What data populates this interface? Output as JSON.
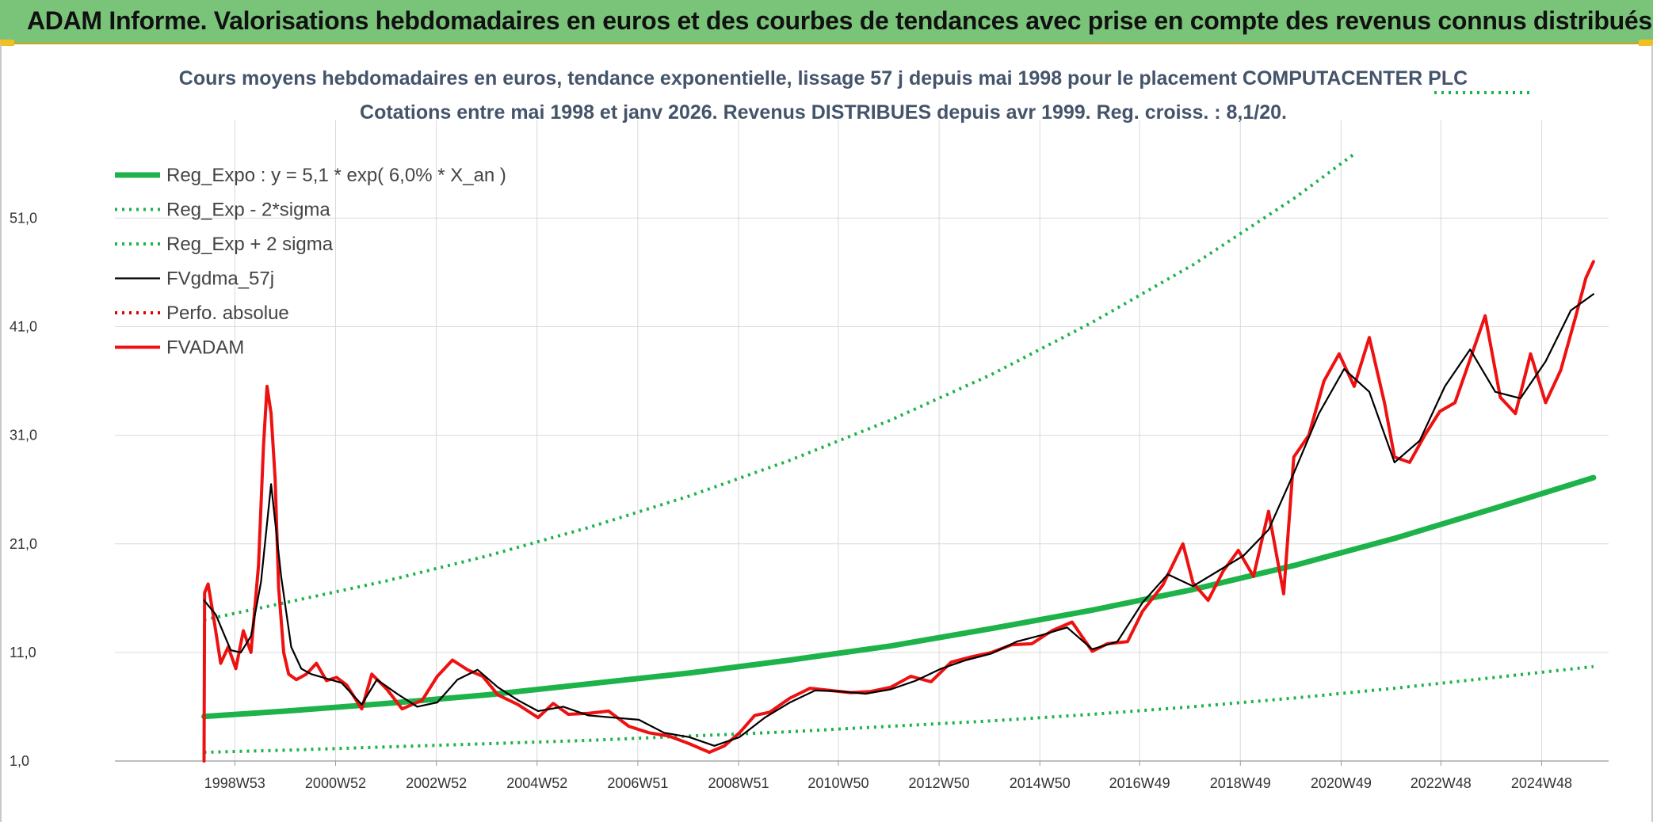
{
  "header": {
    "title": "ADAM Informe. Valorisations hebdomadaires en euros et des courbes de tendances avec prise en compte des revenus connus distribués"
  },
  "colors": {
    "banner": "#7ac47a",
    "reg_expo": "#1db34a",
    "sigma": "#1db34a",
    "fvgdma": "#000000",
    "perfo": "#e00000",
    "fvadam": "#ee1111"
  },
  "chart_data": {
    "type": "line",
    "title": "Cours moyens hebdomadaires en euros, tendance exponentielle, lissage 57 j depuis mai 1998 pour le placement COMPUTACENTER PLC",
    "subtitle": "Cotations entre mai 1998 et janv 2026. Revenus DISTRIBUES depuis avr 1999. Reg. croiss. : 8,1/20.",
    "x_tick_labels": [
      "1998W53",
      "2000W52",
      "2002W52",
      "2004W52",
      "2006W51",
      "2008W51",
      "2010W50",
      "2012W50",
      "2014W50",
      "2016W49",
      "2018W49",
      "2020W49",
      "2022W48",
      "2024W48"
    ],
    "x_tick_years": [
      1998.98,
      2000.98,
      2002.98,
      2004.98,
      2006.98,
      2008.98,
      2010.96,
      2012.96,
      2014.96,
      2016.94,
      2018.94,
      2020.94,
      2022.92,
      2024.92
    ],
    "y_tick_labels": [
      "1,0",
      "11,0",
      "21,0",
      "31,0",
      "41,0",
      "51,0"
    ],
    "y_ticks": [
      1,
      11,
      21,
      31,
      41,
      51
    ],
    "xlim": [
      1996.6,
      2026.25
    ],
    "ylim": [
      1,
      60
    ],
    "grid": true,
    "legend_position": "top-left",
    "series": [
      {
        "name": "Reg_Expo : y = 5,1 * exp( 6,0% *  X_an )",
        "style": "solid-thick",
        "color": "#1db34a",
        "x": [
          1998.37,
          2000,
          2002,
          2004,
          2006,
          2008,
          2010,
          2012,
          2014,
          2016,
          2018,
          2020,
          2022,
          2024,
          2025.95
        ],
        "y": [
          5.1,
          5.6,
          6.3,
          7.1,
          8.1,
          9.1,
          10.3,
          11.6,
          13.2,
          14.9,
          16.8,
          19.0,
          21.5,
          24.3,
          27.1
        ]
      },
      {
        "name": "Reg_Exp - 2*sigma",
        "style": "dotted",
        "color": "#1db34a",
        "x": [
          1998.37,
          2000,
          2002,
          2004,
          2006,
          2008,
          2010,
          2012,
          2014,
          2016,
          2018,
          2020,
          2022,
          2024,
          2025.95
        ],
        "y": [
          1.8,
          2.0,
          2.3,
          2.6,
          2.9,
          3.3,
          3.7,
          4.2,
          4.7,
          5.3,
          6.0,
          6.8,
          7.7,
          8.7,
          9.7
        ]
      },
      {
        "name": "Reg_Exp + 2 sigma",
        "style": "dotted",
        "color": "#1db34a",
        "x": [
          1998.37,
          2000,
          2002,
          2004,
          2006,
          2008,
          2010,
          2012,
          2014,
          2016,
          2018,
          2020,
          2021.2
        ],
        "y": [
          14.0,
          15.6,
          17.6,
          19.9,
          22.5,
          25.4,
          28.7,
          32.4,
          36.6,
          41.4,
          46.7,
          52.8,
          56.9
        ]
      },
      {
        "name": "FVgdma_57j",
        "style": "solid",
        "color": "#000000",
        "x": [
          1998.37,
          1998.6,
          1998.9,
          1999.1,
          1999.3,
          1999.5,
          1999.7,
          1999.9,
          2000.1,
          2000.3,
          2000.5,
          2000.8,
          2001.1,
          2001.5,
          2001.8,
          2002.2,
          2002.6,
          2003.0,
          2003.4,
          2003.8,
          2004.2,
          2004.6,
          2005.0,
          2005.5,
          2006.0,
          2006.5,
          2007.0,
          2007.5,
          2008.0,
          2008.5,
          2009.0,
          2009.5,
          2010.0,
          2010.5,
          2011.0,
          2011.5,
          2012.0,
          2012.5,
          2013.0,
          2013.5,
          2014.0,
          2014.5,
          2015.0,
          2015.5,
          2016.0,
          2016.5,
          2017.0,
          2017.5,
          2018.0,
          2018.5,
          2019.0,
          2019.5,
          2020.0,
          2020.5,
          2021.0,
          2021.5,
          2022.0,
          2022.5,
          2023.0,
          2023.5,
          2024.0,
          2024.5,
          2025.0,
          2025.5,
          2025.95
        ],
        "y": [
          15.8,
          14.5,
          11.2,
          11.0,
          12.5,
          17.5,
          26.5,
          18.0,
          11.5,
          9.5,
          9.0,
          8.6,
          8.2,
          6.2,
          8.5,
          7.2,
          6.0,
          6.4,
          8.5,
          9.4,
          7.8,
          6.6,
          5.6,
          6.0,
          5.2,
          5.0,
          4.8,
          3.6,
          3.2,
          2.4,
          3.2,
          5.0,
          6.4,
          7.5,
          7.4,
          7.2,
          7.6,
          8.4,
          9.5,
          10.3,
          10.9,
          12.0,
          12.6,
          13.3,
          11.3,
          12.0,
          15.6,
          18.2,
          17.1,
          18.5,
          19.9,
          22.3,
          27.5,
          33.0,
          37.1,
          35.0,
          28.5,
          30.5,
          35.5,
          38.9,
          35.0,
          34.4,
          37.8,
          42.5,
          44.0
        ]
      },
      {
        "name": "Perfo. absolue",
        "style": "dotted",
        "color": "#e00000",
        "x": [],
        "y": []
      },
      {
        "name": "FVADAM",
        "style": "solid-thick",
        "color": "#ee1111",
        "x": [
          1998.37,
          1998.38,
          1998.45,
          1998.55,
          1998.7,
          1998.85,
          1999.0,
          1999.15,
          1999.3,
          1999.45,
          1999.55,
          1999.62,
          1999.7,
          1999.78,
          1999.85,
          1999.95,
          2000.05,
          2000.2,
          2000.4,
          2000.6,
          2000.8,
          2001.0,
          2001.2,
          2001.5,
          2001.7,
          2002.0,
          2002.3,
          2002.7,
          2003.0,
          2003.3,
          2003.6,
          2003.9,
          2004.2,
          2004.6,
          2005.0,
          2005.3,
          2005.6,
          2006.0,
          2006.4,
          2006.8,
          2007.2,
          2007.6,
          2008.0,
          2008.4,
          2008.7,
          2009.0,
          2009.3,
          2009.6,
          2010.0,
          2010.4,
          2010.8,
          2011.2,
          2011.6,
          2012.0,
          2012.4,
          2012.8,
          2013.2,
          2013.6,
          2014.0,
          2014.4,
          2014.8,
          2015.2,
          2015.6,
          2016.0,
          2016.3,
          2016.7,
          2017.0,
          2017.4,
          2017.8,
          2018.0,
          2018.3,
          2018.6,
          2018.9,
          2019.2,
          2019.5,
          2019.8,
          2020.0,
          2020.3,
          2020.6,
          2020.9,
          2021.2,
          2021.5,
          2021.8,
          2022.0,
          2022.3,
          2022.6,
          2022.9,
          2023.2,
          2023.5,
          2023.8,
          2024.1,
          2024.4,
          2024.7,
          2025.0,
          2025.3,
          2025.6,
          2025.8,
          2025.95
        ],
        "y": [
          1.0,
          16.5,
          17.3,
          14.5,
          10.0,
          11.5,
          9.5,
          13.0,
          11.0,
          19.0,
          30.0,
          35.5,
          33.0,
          27.0,
          17.0,
          11.0,
          9.0,
          8.5,
          9.0,
          10.0,
          8.4,
          8.7,
          8.0,
          5.8,
          9.0,
          7.6,
          5.8,
          6.6,
          8.8,
          10.3,
          9.4,
          8.8,
          7.1,
          6.2,
          5.0,
          6.3,
          5.3,
          5.4,
          5.6,
          4.2,
          3.6,
          3.3,
          2.6,
          1.8,
          2.4,
          3.6,
          5.2,
          5.5,
          6.8,
          7.7,
          7.5,
          7.3,
          7.4,
          7.8,
          8.8,
          8.3,
          10.1,
          10.6,
          11.0,
          11.7,
          11.8,
          13.0,
          13.8,
          11.1,
          11.8,
          12.0,
          14.8,
          17.2,
          21.0,
          17.4,
          15.8,
          18.5,
          20.4,
          18.0,
          24.0,
          16.4,
          29.0,
          31.0,
          36.0,
          38.5,
          35.5,
          40.0,
          34.0,
          29.0,
          28.5,
          31.0,
          33.2,
          34.0,
          38.0,
          42.0,
          34.5,
          33.0,
          38.5,
          34.0,
          37.0,
          42.0,
          45.5,
          47.0
        ]
      }
    ]
  }
}
